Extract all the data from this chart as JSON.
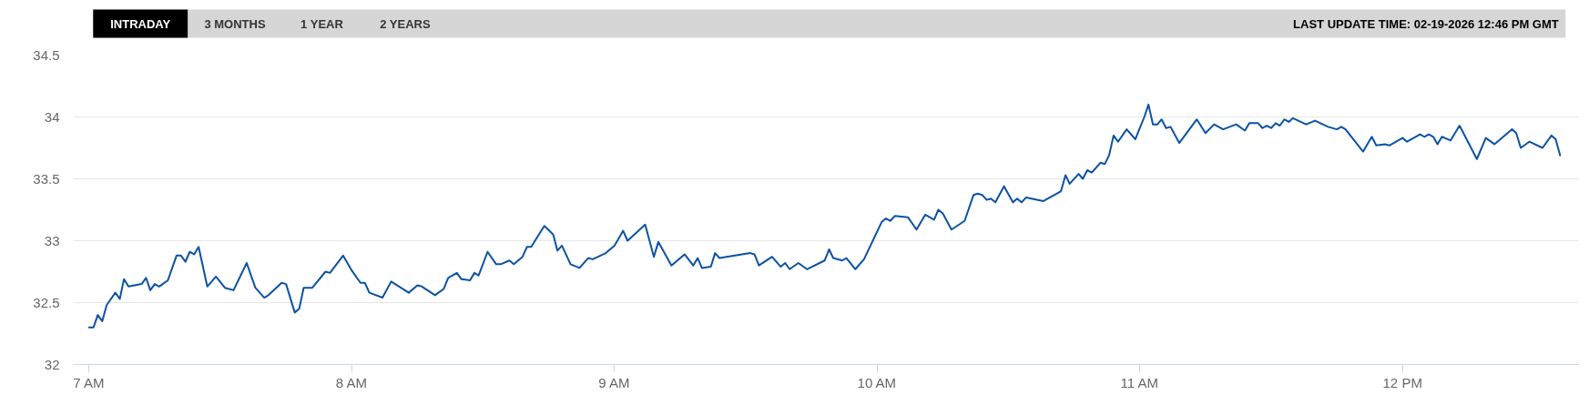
{
  "chart_data": {
    "type": "line",
    "subtitle": "LAST UPDATE TIME: 02-19-2026 12:46 PM GMT",
    "annotations": [
      "INTRADAY",
      "3 MONTHS",
      "1 YEAR",
      "2 YEARS"
    ],
    "x": [
      7.0,
      7.017,
      7.033,
      7.05,
      7.067,
      7.1,
      7.117,
      7.133,
      7.15,
      7.2,
      7.217,
      7.233,
      7.25,
      7.267,
      7.3,
      7.333,
      7.35,
      7.367,
      7.383,
      7.4,
      7.417,
      7.45,
      7.483,
      7.517,
      7.55,
      7.6,
      7.633,
      7.667,
      7.683,
      7.733,
      7.75,
      7.783,
      7.8,
      7.817,
      7.85,
      7.9,
      7.917,
      7.967,
      8.0,
      8.033,
      8.05,
      8.067,
      8.117,
      8.15,
      8.217,
      8.25,
      8.267,
      8.317,
      8.35,
      8.367,
      8.4,
      8.417,
      8.45,
      8.467,
      8.483,
      8.517,
      8.55,
      8.567,
      8.6,
      8.617,
      8.65,
      8.667,
      8.683,
      8.733,
      8.767,
      8.783,
      8.8,
      8.833,
      8.867,
      8.9,
      8.917,
      8.967,
      9.0,
      9.033,
      9.05,
      9.117,
      9.15,
      9.167,
      9.217,
      9.267,
      9.3,
      9.317,
      9.333,
      9.367,
      9.383,
      9.4,
      9.517,
      9.533,
      9.55,
      9.6,
      9.633,
      9.65,
      9.667,
      9.7,
      9.733,
      9.8,
      9.817,
      9.833,
      9.867,
      9.883,
      9.917,
      9.95,
      10.017,
      10.033,
      10.05,
      10.067,
      10.117,
      10.15,
      10.183,
      10.217,
      10.233,
      10.25,
      10.283,
      10.333,
      10.367,
      10.383,
      10.4,
      10.417,
      10.433,
      10.45,
      10.483,
      10.517,
      10.533,
      10.55,
      10.567,
      10.633,
      10.7,
      10.717,
      10.733,
      10.767,
      10.783,
      10.8,
      10.817,
      10.85,
      10.867,
      10.883,
      10.9,
      10.917,
      10.95,
      10.983,
      11.017,
      11.033,
      11.05,
      11.067,
      11.083,
      11.1,
      11.117,
      11.15,
      11.217,
      11.25,
      11.283,
      11.317,
      11.367,
      11.4,
      11.417,
      11.45,
      11.467,
      11.483,
      11.5,
      11.517,
      11.533,
      11.55,
      11.567,
      11.583,
      11.633,
      11.667,
      11.717,
      11.75,
      11.767,
      11.783,
      11.85,
      11.883,
      11.9,
      11.933,
      11.95,
      12.0,
      12.017,
      12.067,
      12.083,
      12.1,
      12.117,
      12.133,
      12.15,
      12.183,
      12.217,
      12.283,
      12.317,
      12.35,
      12.417,
      12.433,
      12.45,
      12.483,
      12.533,
      12.567,
      12.583,
      12.6
    ],
    "series": [
      {
        "color": "#0b52a3",
        "values": [
          32.3,
          32.3,
          32.4,
          32.35,
          32.48,
          32.58,
          32.53,
          32.69,
          32.63,
          32.65,
          32.7,
          32.6,
          32.65,
          32.63,
          32.68,
          32.88,
          32.88,
          32.83,
          32.91,
          32.89,
          32.95,
          32.63,
          32.71,
          32.62,
          32.6,
          32.82,
          32.62,
          32.54,
          32.56,
          32.66,
          32.65,
          32.42,
          32.45,
          32.62,
          32.62,
          32.75,
          32.74,
          32.88,
          32.76,
          32.66,
          32.66,
          32.58,
          32.54,
          32.67,
          32.58,
          32.64,
          32.63,
          32.56,
          32.61,
          32.7,
          32.74,
          32.69,
          32.68,
          32.74,
          32.72,
          32.91,
          32.81,
          32.81,
          32.84,
          32.81,
          32.87,
          32.95,
          32.95,
          33.12,
          33.05,
          32.92,
          32.96,
          32.81,
          32.78,
          32.86,
          32.85,
          32.9,
          32.96,
          33.08,
          33.0,
          33.13,
          32.87,
          32.99,
          32.8,
          32.89,
          32.8,
          32.86,
          32.78,
          32.79,
          32.9,
          32.86,
          32.9,
          32.89,
          32.8,
          32.87,
          32.79,
          32.82,
          32.77,
          32.82,
          32.77,
          32.84,
          32.93,
          32.86,
          32.84,
          32.86,
          32.77,
          32.85,
          33.15,
          33.18,
          33.16,
          33.2,
          33.19,
          33.09,
          33.21,
          33.17,
          33.25,
          33.22,
          33.09,
          33.16,
          33.37,
          33.38,
          33.37,
          33.33,
          33.34,
          33.31,
          33.44,
          33.31,
          33.34,
          33.31,
          33.35,
          33.32,
          33.4,
          33.53,
          33.46,
          33.54,
          33.5,
          33.57,
          33.55,
          33.63,
          33.62,
          33.69,
          33.85,
          33.8,
          33.9,
          33.82,
          34.0,
          34.1,
          33.94,
          33.94,
          33.98,
          33.91,
          33.92,
          33.79,
          33.98,
          33.87,
          33.94,
          33.9,
          33.94,
          33.89,
          33.95,
          33.95,
          33.91,
          33.93,
          33.91,
          33.95,
          33.93,
          33.98,
          33.96,
          33.99,
          33.94,
          33.97,
          33.92,
          33.9,
          33.92,
          33.9,
          33.72,
          33.84,
          33.77,
          33.78,
          33.77,
          33.83,
          33.8,
          33.86,
          33.84,
          33.86,
          33.84,
          33.78,
          33.84,
          33.81,
          33.93,
          33.66,
          33.83,
          33.78,
          33.9,
          33.87,
          33.75,
          33.8,
          33.75,
          33.85,
          33.82,
          33.69
        ]
      }
    ],
    "xlim": [
      6.94,
      12.67
    ],
    "ylim": [
      32,
      34.5
    ],
    "xticks": [
      {
        "value": 7,
        "label": "7 AM"
      },
      {
        "value": 8,
        "label": "8 AM"
      },
      {
        "value": 9,
        "label": "9 AM"
      },
      {
        "value": 10,
        "label": "10 AM"
      },
      {
        "value": 11,
        "label": "11 AM"
      },
      {
        "value": 12,
        "label": "12 PM"
      }
    ],
    "yticks": [
      32,
      32.5,
      33,
      33.5,
      34,
      34.5
    ],
    "grid": "y"
  }
}
